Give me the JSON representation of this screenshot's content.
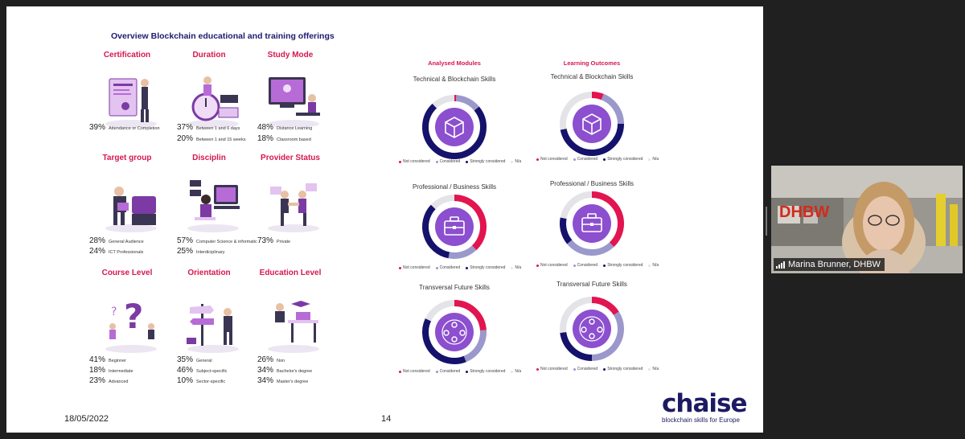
{
  "slide": {
    "title": "Overview Blockchain educational and training offerings",
    "date": "18/05/2022",
    "page_number": "14",
    "categories": [
      {
        "name": "Certification",
        "icon": "certificate-illustration",
        "stats": [
          {
            "pct": "39%",
            "label": "Attendance or Completion"
          }
        ]
      },
      {
        "name": "Duration",
        "icon": "stopwatch-illustration",
        "stats": [
          {
            "pct": "37%",
            "label": "Between 1 and 6 days"
          },
          {
            "pct": "20%",
            "label": "Between 1 and 15 weeks"
          }
        ]
      },
      {
        "name": "Study Mode",
        "icon": "online-class-illustration",
        "stats": [
          {
            "pct": "48%",
            "label": "Distance Learning"
          },
          {
            "pct": "18%",
            "label": "Classroom based"
          }
        ]
      },
      {
        "name": "Target group",
        "icon": "students-illustration",
        "stats": [
          {
            "pct": "28%",
            "label": "General Audience"
          },
          {
            "pct": "24%",
            "label": "ICT Professionals"
          }
        ]
      },
      {
        "name": "Disciplin",
        "icon": "programmer-illustration",
        "stats": [
          {
            "pct": "57%",
            "label": "Computer Science & informatic"
          },
          {
            "pct": "25%",
            "label": "Interdiciplinary"
          }
        ]
      },
      {
        "name": "Provider Status",
        "icon": "handshake-illustration",
        "stats": [
          {
            "pct": "73%",
            "label": "Private"
          }
        ]
      },
      {
        "name": "Course Level",
        "icon": "question-illustration",
        "stats": [
          {
            "pct": "41%",
            "label": "Beginner"
          },
          {
            "pct": "18%",
            "label": "Intermediate"
          },
          {
            "pct": "23%",
            "label": "Advanced"
          }
        ]
      },
      {
        "name": "Orientation",
        "icon": "signpost-illustration",
        "stats": [
          {
            "pct": "35%",
            "label": "General"
          },
          {
            "pct": "46%",
            "label": "Subject-specific"
          },
          {
            "pct": "10%",
            "label": "Sector-specific"
          }
        ]
      },
      {
        "name": "Education Level",
        "icon": "graduate-illustration",
        "stats": [
          {
            "pct": "26%",
            "label": "Non"
          },
          {
            "pct": "34%",
            "label": "Bachelor's degree"
          },
          {
            "pct": "34%",
            "label": "Master's degree"
          }
        ]
      }
    ],
    "columns": [
      {
        "title": "Analysed Modules"
      },
      {
        "title": "Learning Outcomes"
      }
    ],
    "legend": [
      "Not considered",
      "Considered",
      "Strongly considered",
      "N/a"
    ],
    "colors": {
      "not_considered": "#e11550",
      "considered": "#9b98cc",
      "strongly_considered": "#15126b",
      "na": "#e4e4e8",
      "center": "#8c4fcf",
      "accent": "#d6184f",
      "title": "#1b1b6e"
    },
    "brand": {
      "logo": "chaise",
      "tagline": "blockchain skills for Europe"
    }
  },
  "chart_data": [
    {
      "type": "pie",
      "title": "Technical & Blockchain Skills",
      "column": "Analysed Modules",
      "icon": "cube-icon",
      "categories": [
        "Not considered",
        "Considered",
        "Strongly considered",
        "N/a"
      ],
      "values": [
        1,
        13,
        74,
        12
      ]
    },
    {
      "type": "pie",
      "title": "Technical & Blockchain Skills",
      "column": "Learning Outcomes",
      "icon": "cube-icon",
      "categories": [
        "Not considered",
        "Considered",
        "Strongly considered",
        "N/a"
      ],
      "values": [
        6,
        19,
        47,
        28
      ]
    },
    {
      "type": "pie",
      "title": "Professional / Business Skills",
      "column": "Analysed Modules",
      "icon": "briefcase-icon",
      "categories": [
        "Not considered",
        "Considered",
        "Strongly considered",
        "N/a"
      ],
      "values": [
        38,
        15,
        34,
        13
      ]
    },
    {
      "type": "pie",
      "title": "Professional / Business Skills",
      "column": "Learning Outcomes",
      "icon": "briefcase-icon",
      "categories": [
        "Not considered",
        "Considered",
        "Strongly considered",
        "N/a"
      ],
      "values": [
        38,
        26,
        14,
        22
      ]
    },
    {
      "type": "pie",
      "title": "Transversal Future Skills",
      "column": "Analysed Modules",
      "icon": "team-icon",
      "categories": [
        "Not considered",
        "Considered",
        "Strongly considered",
        "N/a"
      ],
      "values": [
        24,
        20,
        38,
        18
      ]
    },
    {
      "type": "pie",
      "title": "Transversal Future Skills",
      "column": "Learning Outcomes",
      "icon": "team-icon",
      "categories": [
        "Not considered",
        "Considered",
        "Strongly considered",
        "N/a"
      ],
      "values": [
        16,
        34,
        23,
        27
      ]
    }
  ],
  "video": {
    "participant_name": "Marina Brunner, DHBW"
  }
}
